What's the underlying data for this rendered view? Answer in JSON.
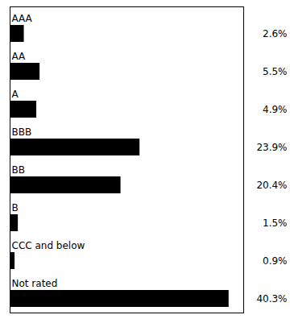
{
  "chart_data": {
    "type": "bar",
    "orientation": "horizontal",
    "categories": [
      "AAA",
      "AA",
      "A",
      "BBB",
      "BB",
      "B",
      "CCC and below",
      "Not rated"
    ],
    "values": [
      2.6,
      5.5,
      4.9,
      23.9,
      20.4,
      1.5,
      0.9,
      40.3
    ],
    "value_labels": [
      "2.6%",
      "5.5%",
      "4.9%",
      "23.9%",
      "20.4%",
      "1.5%",
      "0.9%",
      "40.3%"
    ],
    "color": "#000000",
    "xlim": [
      0,
      43
    ],
    "data_labels": true,
    "tick_labels": false,
    "grid": false
  }
}
